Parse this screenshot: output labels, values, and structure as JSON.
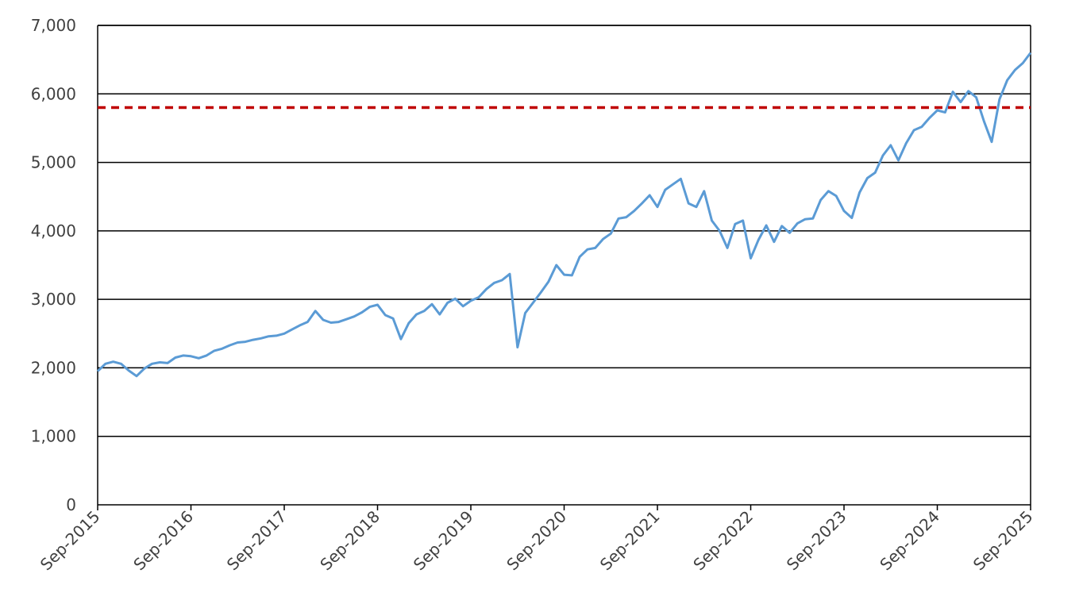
{
  "chart_data": {
    "type": "line",
    "title": "",
    "xlabel": "",
    "ylabel": "",
    "ylim": [
      0,
      7000
    ],
    "xlim": [
      "2015-09",
      "2025-09"
    ],
    "grid": "horizontal",
    "legend": "none",
    "y_ticks": [
      {
        "value": 0,
        "label": "0"
      },
      {
        "value": 1000,
        "label": "1,000"
      },
      {
        "value": 2000,
        "label": "2,000"
      },
      {
        "value": 3000,
        "label": "3,000"
      },
      {
        "value": 4000,
        "label": "4,000"
      },
      {
        "value": 5000,
        "label": "5,000"
      },
      {
        "value": 6000,
        "label": "6,000"
      },
      {
        "value": 7000,
        "label": "7,000"
      }
    ],
    "x_ticks": [
      {
        "date": "2015-09",
        "label": "Sep-2015"
      },
      {
        "date": "2016-09",
        "label": "Sep-2016"
      },
      {
        "date": "2017-09",
        "label": "Sep-2017"
      },
      {
        "date": "2018-09",
        "label": "Sep-2018"
      },
      {
        "date": "2019-09",
        "label": "Sep-2019"
      },
      {
        "date": "2020-09",
        "label": "Sep-2020"
      },
      {
        "date": "2021-09",
        "label": "Sep-2021"
      },
      {
        "date": "2022-09",
        "label": "Sep-2022"
      },
      {
        "date": "2023-09",
        "label": "Sep-2023"
      },
      {
        "date": "2024-09",
        "label": "Sep-2024"
      },
      {
        "date": "2025-09",
        "label": "Sep-2025"
      }
    ],
    "series": [
      {
        "color": "#5B9BD5",
        "points": [
          [
            "2015-09",
            1950
          ],
          [
            "2015-10",
            2060
          ],
          [
            "2015-11",
            2090
          ],
          [
            "2015-12",
            2060
          ],
          [
            "2016-01",
            1960
          ],
          [
            "2016-02",
            1880
          ],
          [
            "2016-03",
            1990
          ],
          [
            "2016-04",
            2060
          ],
          [
            "2016-05",
            2080
          ],
          [
            "2016-06",
            2070
          ],
          [
            "2016-07",
            2150
          ],
          [
            "2016-08",
            2180
          ],
          [
            "2016-09",
            2170
          ],
          [
            "2016-10",
            2140
          ],
          [
            "2016-11",
            2180
          ],
          [
            "2016-12",
            2250
          ],
          [
            "2017-01",
            2280
          ],
          [
            "2017-02",
            2330
          ],
          [
            "2017-03",
            2370
          ],
          [
            "2017-04",
            2380
          ],
          [
            "2017-05",
            2410
          ],
          [
            "2017-06",
            2430
          ],
          [
            "2017-07",
            2460
          ],
          [
            "2017-08",
            2470
          ],
          [
            "2017-09",
            2500
          ],
          [
            "2017-10",
            2560
          ],
          [
            "2017-11",
            2620
          ],
          [
            "2017-12",
            2670
          ],
          [
            "2018-01",
            2830
          ],
          [
            "2018-02",
            2700
          ],
          [
            "2018-03",
            2660
          ],
          [
            "2018-04",
            2670
          ],
          [
            "2018-05",
            2710
          ],
          [
            "2018-06",
            2750
          ],
          [
            "2018-07",
            2810
          ],
          [
            "2018-08",
            2890
          ],
          [
            "2018-09",
            2920
          ],
          [
            "2018-10",
            2770
          ],
          [
            "2018-11",
            2720
          ],
          [
            "2018-12",
            2420
          ],
          [
            "2019-01",
            2650
          ],
          [
            "2019-02",
            2780
          ],
          [
            "2019-03",
            2830
          ],
          [
            "2019-04",
            2930
          ],
          [
            "2019-05",
            2780
          ],
          [
            "2019-06",
            2950
          ],
          [
            "2019-07",
            3010
          ],
          [
            "2019-08",
            2900
          ],
          [
            "2019-09",
            2980
          ],
          [
            "2019-10",
            3030
          ],
          [
            "2019-11",
            3150
          ],
          [
            "2019-12",
            3240
          ],
          [
            "2020-01",
            3280
          ],
          [
            "2020-02",
            3370
          ],
          [
            "2020-03",
            2300
          ],
          [
            "2020-04",
            2800
          ],
          [
            "2020-05",
            2950
          ],
          [
            "2020-06",
            3100
          ],
          [
            "2020-07",
            3260
          ],
          [
            "2020-08",
            3500
          ],
          [
            "2020-09",
            3360
          ],
          [
            "2020-10",
            3350
          ],
          [
            "2020-11",
            3620
          ],
          [
            "2020-12",
            3730
          ],
          [
            "2021-01",
            3750
          ],
          [
            "2021-02",
            3880
          ],
          [
            "2021-03",
            3960
          ],
          [
            "2021-04",
            4180
          ],
          [
            "2021-05",
            4200
          ],
          [
            "2021-06",
            4290
          ],
          [
            "2021-07",
            4400
          ],
          [
            "2021-08",
            4520
          ],
          [
            "2021-09",
            4350
          ],
          [
            "2021-10",
            4600
          ],
          [
            "2021-11",
            4680
          ],
          [
            "2021-12",
            4760
          ],
          [
            "2022-01",
            4400
          ],
          [
            "2022-02",
            4350
          ],
          [
            "2022-03",
            4580
          ],
          [
            "2022-04",
            4150
          ],
          [
            "2022-05",
            4000
          ],
          [
            "2022-06",
            3750
          ],
          [
            "2022-07",
            4100
          ],
          [
            "2022-08",
            4150
          ],
          [
            "2022-09",
            3600
          ],
          [
            "2022-10",
            3870
          ],
          [
            "2022-11",
            4080
          ],
          [
            "2022-12",
            3840
          ],
          [
            "2023-01",
            4070
          ],
          [
            "2023-02",
            3970
          ],
          [
            "2023-03",
            4110
          ],
          [
            "2023-04",
            4170
          ],
          [
            "2023-05",
            4180
          ],
          [
            "2023-06",
            4450
          ],
          [
            "2023-07",
            4580
          ],
          [
            "2023-08",
            4510
          ],
          [
            "2023-09",
            4290
          ],
          [
            "2023-10",
            4190
          ],
          [
            "2023-11",
            4560
          ],
          [
            "2023-12",
            4770
          ],
          [
            "2024-01",
            4850
          ],
          [
            "2024-02",
            5100
          ],
          [
            "2024-03",
            5250
          ],
          [
            "2024-04",
            5030
          ],
          [
            "2024-05",
            5280
          ],
          [
            "2024-06",
            5470
          ],
          [
            "2024-07",
            5520
          ],
          [
            "2024-08",
            5650
          ],
          [
            "2024-09",
            5760
          ],
          [
            "2024-10",
            5730
          ],
          [
            "2024-11",
            6030
          ],
          [
            "2024-12",
            5880
          ],
          [
            "2025-01",
            6040
          ],
          [
            "2025-02",
            5950
          ],
          [
            "2025-03",
            5600
          ],
          [
            "2025-04",
            5300
          ],
          [
            "2025-05",
            5920
          ],
          [
            "2025-06",
            6200
          ],
          [
            "2025-07",
            6350
          ],
          [
            "2025-08",
            6450
          ],
          [
            "2025-09",
            6600
          ]
        ]
      }
    ],
    "reference_line": {
      "value": 5800,
      "color": "#C00000",
      "style": "dashed"
    }
  }
}
